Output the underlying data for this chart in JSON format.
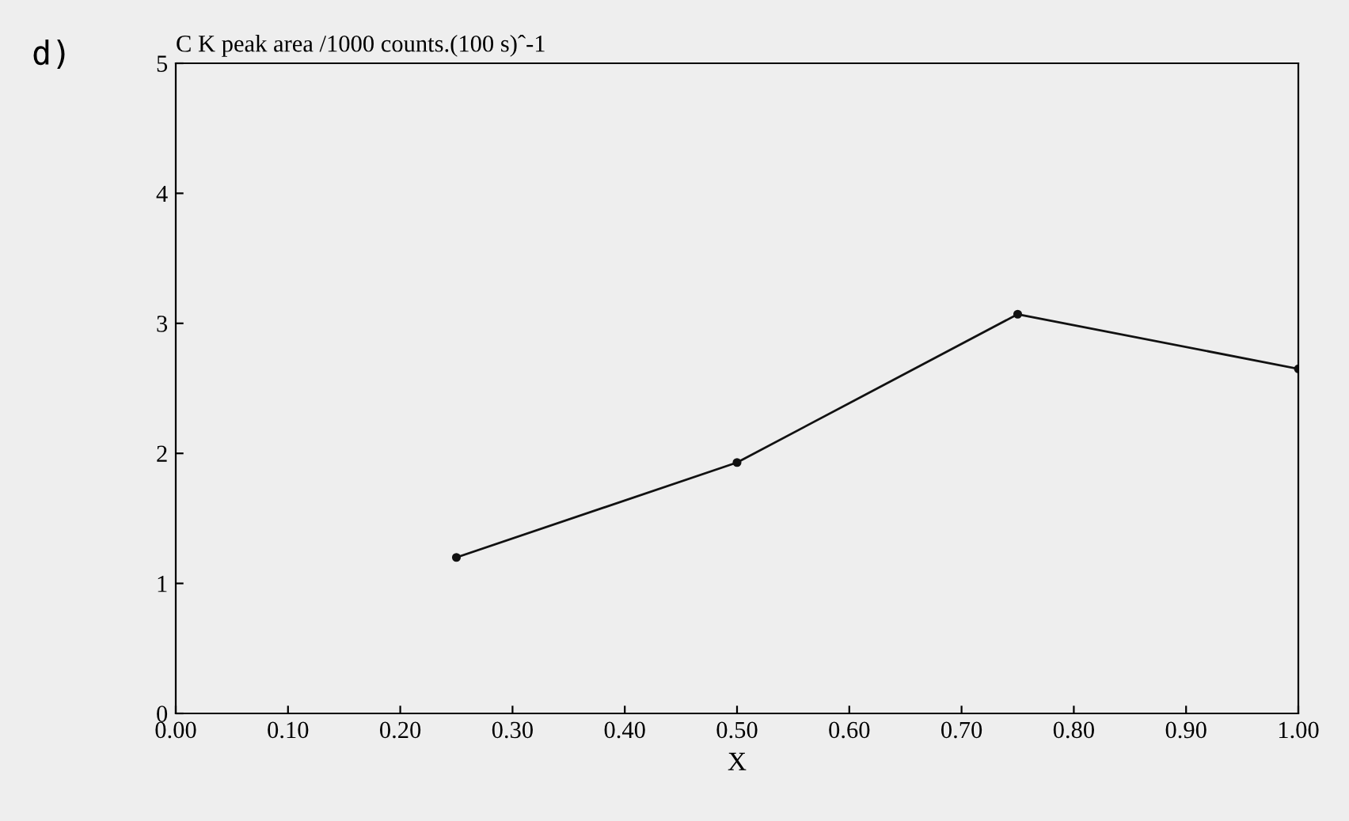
{
  "chart_data": {
    "type": "line",
    "ylabel": "C K peak area /1000 counts.(100 s)ˆ-1",
    "xlabel": "X",
    "annotations": [
      "d)"
    ],
    "x": [
      0.25,
      0.5,
      0.75,
      1.0
    ],
    "series": [
      {
        "color": "#111111",
        "values": [
          1.2,
          1.93,
          3.07,
          2.65
        ]
      }
    ],
    "xlim": [
      0,
      1
    ],
    "ylim": [
      0,
      5
    ],
    "xticks": [
      {
        "value": 0,
        "label": "0.00"
      },
      {
        "value": 0.1,
        "label": "0.10"
      },
      {
        "value": 0.2,
        "label": "0.20"
      },
      {
        "value": 0.3,
        "label": "0.30"
      },
      {
        "value": 0.4,
        "label": "0.40"
      },
      {
        "value": 0.5,
        "label": "0.50"
      },
      {
        "value": 0.6,
        "label": "0.60"
      },
      {
        "value": 0.7,
        "label": "0.70"
      },
      {
        "value": 0.8,
        "label": "0.80"
      },
      {
        "value": 0.9,
        "label": "0.90"
      },
      {
        "value": 1.0,
        "label": "1.00"
      }
    ],
    "yticks": [
      0,
      1,
      2,
      3,
      4,
      5
    ],
    "grid": false,
    "legend": false,
    "marker": "circle",
    "line_style": "solid"
  }
}
